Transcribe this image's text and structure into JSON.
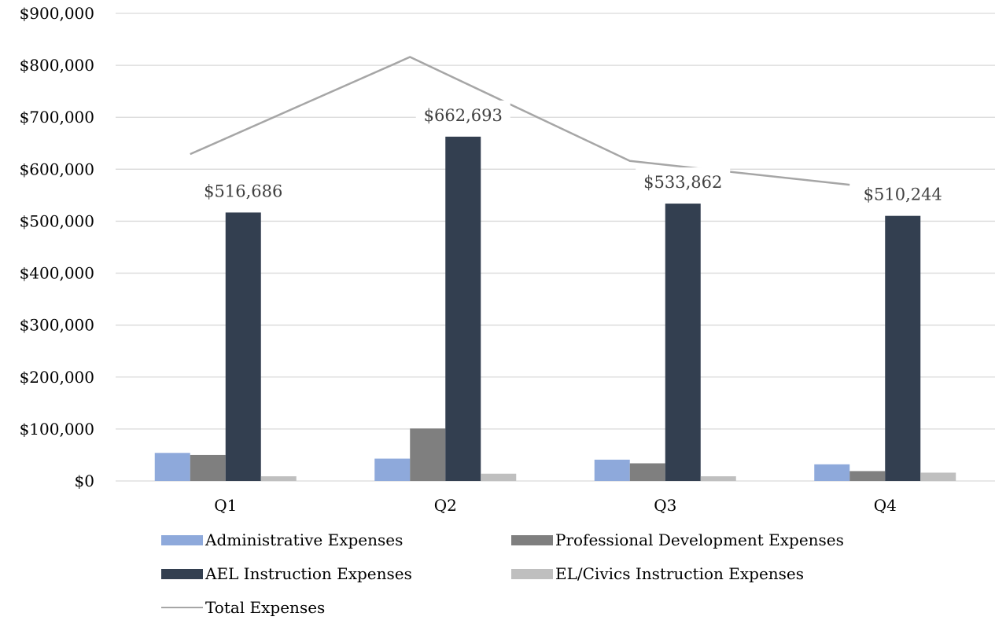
{
  "chart_data": {
    "type": "bar",
    "categories": [
      "Q1",
      "Q2",
      "Q3",
      "Q4"
    ],
    "series": [
      {
        "name": "Administrative Expenses",
        "type": "bar",
        "color": "#8EA9DB",
        "values": [
          54000,
          43000,
          41000,
          32000
        ]
      },
      {
        "name": "Professional Development Expenses",
        "type": "bar",
        "color": "#7F7F7F",
        "values": [
          50000,
          101000,
          34000,
          19000
        ]
      },
      {
        "name": "AEL Instruction Expenses",
        "type": "bar",
        "color": "#333F50",
        "values": [
          516686,
          662693,
          533862,
          510244
        ]
      },
      {
        "name": "EL/Civics Instruction Expenses",
        "type": "bar",
        "color": "#BFBFBF",
        "values": [
          9000,
          14000,
          9000,
          16000
        ]
      },
      {
        "name": "Total Expenses",
        "type": "line",
        "color": "#A6A6A6",
        "values": [
          629000,
          816000,
          616000,
          570000
        ]
      }
    ],
    "data_labels": {
      "series": "AEL Instruction Expenses",
      "labels": [
        "$516,686",
        "$662,693",
        "$533,862",
        "$510,244"
      ]
    },
    "y_ticks": [
      "$0",
      "$100,000",
      "$200,000",
      "$300,000",
      "$400,000",
      "$500,000",
      "$600,000",
      "$700,000",
      "$800,000",
      "$900,000"
    ],
    "ylim": [
      0,
      900000
    ],
    "title": "",
    "xlabel": "",
    "ylabel": "",
    "grid": true,
    "legend_position": "bottom"
  },
  "legend": {
    "administrative": "Administrative Expenses",
    "professional_development": "Professional Development Expenses",
    "ael_instruction": "AEL Instruction Expenses",
    "el_civics": "EL/Civics Instruction Expenses",
    "total": "Total Expenses"
  }
}
